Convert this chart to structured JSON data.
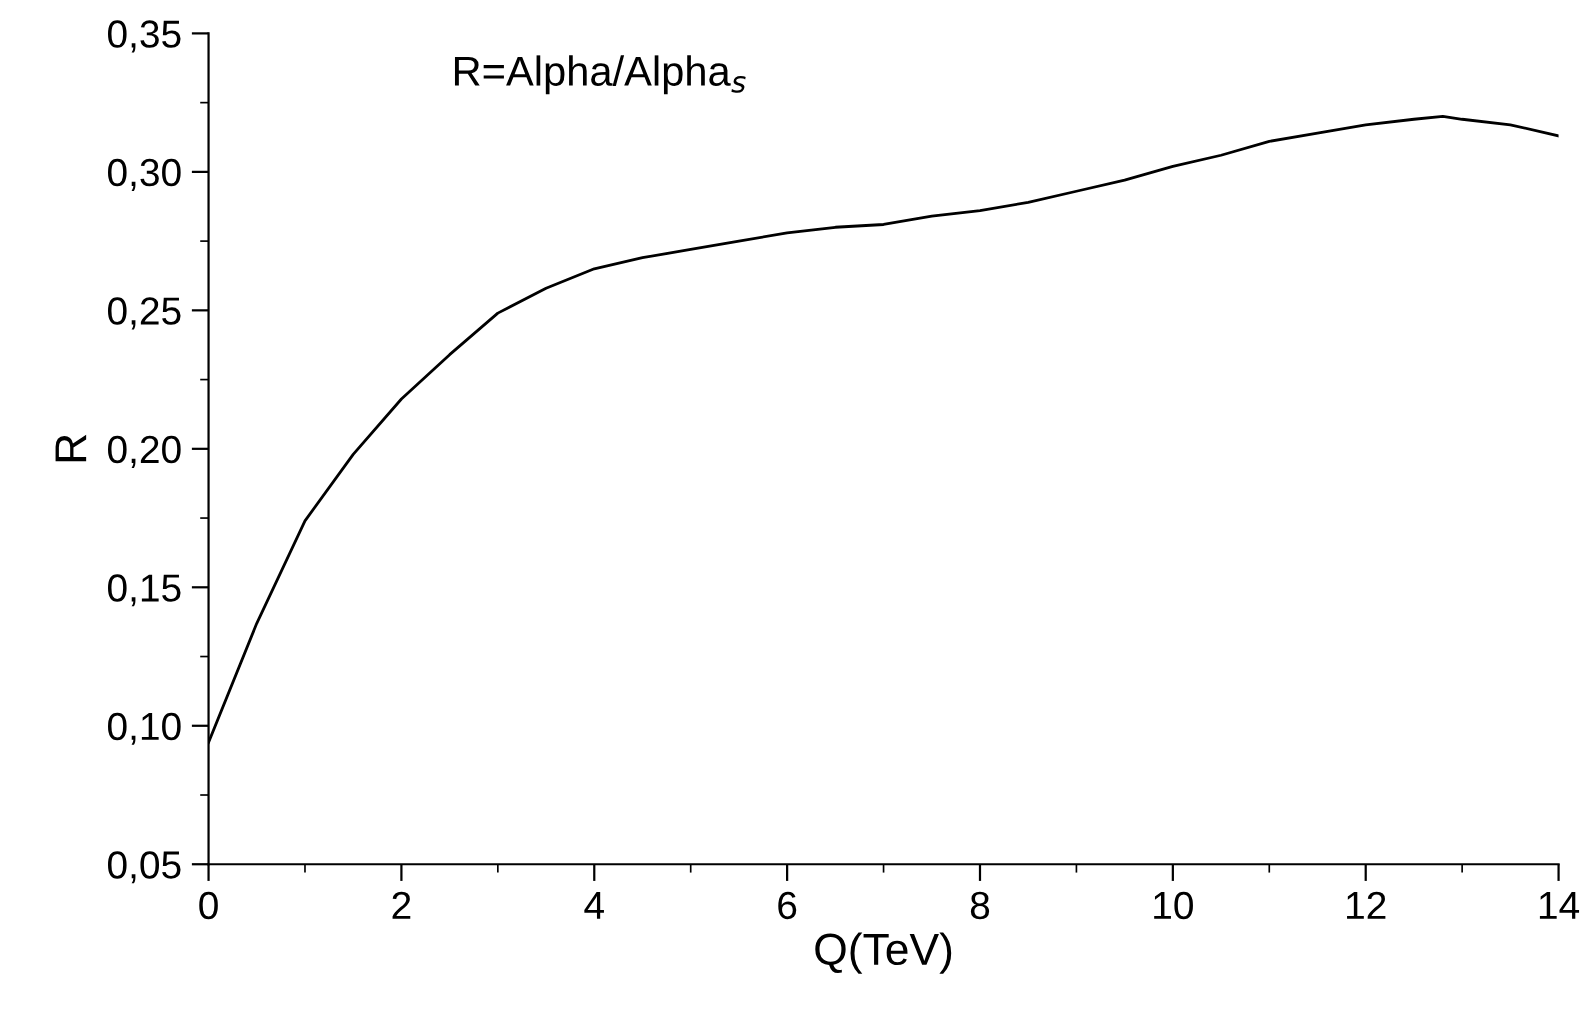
{
  "chart_data": {
    "type": "line",
    "xlabel": "Q(TeV)",
    "ylabel": "R",
    "annotations": [
      "R=Alpha/Alpha$_{s}$"
    ],
    "series": [
      {
        "color": "#000000",
        "x": [
          0,
          0.5,
          1,
          1.5,
          2,
          2.5,
          3,
          3.5,
          4,
          4.5,
          5,
          5.5,
          6,
          6.5,
          7,
          7.5,
          8,
          8.5,
          9,
          9.5,
          10,
          10.5,
          11,
          11.5,
          12,
          12.5,
          12.8,
          13,
          13.5,
          14
        ],
        "values": [
          0.094,
          0.137,
          0.174,
          0.198,
          0.218,
          0.234,
          0.249,
          0.258,
          0.265,
          0.269,
          0.272,
          0.275,
          0.278,
          0.28,
          0.281,
          0.284,
          0.286,
          0.289,
          0.293,
          0.297,
          0.302,
          0.306,
          0.311,
          0.314,
          0.317,
          0.319,
          0.32,
          0.319,
          0.317,
          0.313
        ]
      }
    ],
    "xlim": [
      0,
      14
    ],
    "xticks": [
      0,
      {
        "value": 1,
        "label": null
      },
      2,
      {
        "value": 3,
        "label": null
      },
      4,
      {
        "value": 5,
        "label": null
      },
      6,
      {
        "value": 7,
        "label": null
      },
      8,
      {
        "value": 9,
        "label": null
      },
      10,
      {
        "value": 11,
        "label": null
      },
      12,
      {
        "value": 13,
        "label": null
      },
      14
    ],
    "ylim": [
      0.05,
      0.35
    ],
    "yticks": [
      {
        "value": 0.05,
        "label": "0,05"
      },
      {
        "value": 0.075,
        "label": null
      },
      {
        "value": 0.1,
        "label": "0,10"
      },
      {
        "value": 0.125,
        "label": null
      },
      {
        "value": 0.15,
        "label": "0,15"
      },
      {
        "value": 0.175,
        "label": null
      },
      {
        "value": 0.2,
        "label": "0,20"
      },
      {
        "value": 0.225,
        "label": null
      },
      {
        "value": 0.25,
        "label": "0,25"
      },
      {
        "value": 0.275,
        "label": null
      },
      {
        "value": 0.3,
        "label": "0,30"
      },
      {
        "value": 0.325,
        "label": null
      },
      {
        "value": 0.35,
        "label": "0,35"
      }
    ],
    "grid": false,
    "legend": false,
    "marker": "none",
    "line_style": "solid"
  }
}
